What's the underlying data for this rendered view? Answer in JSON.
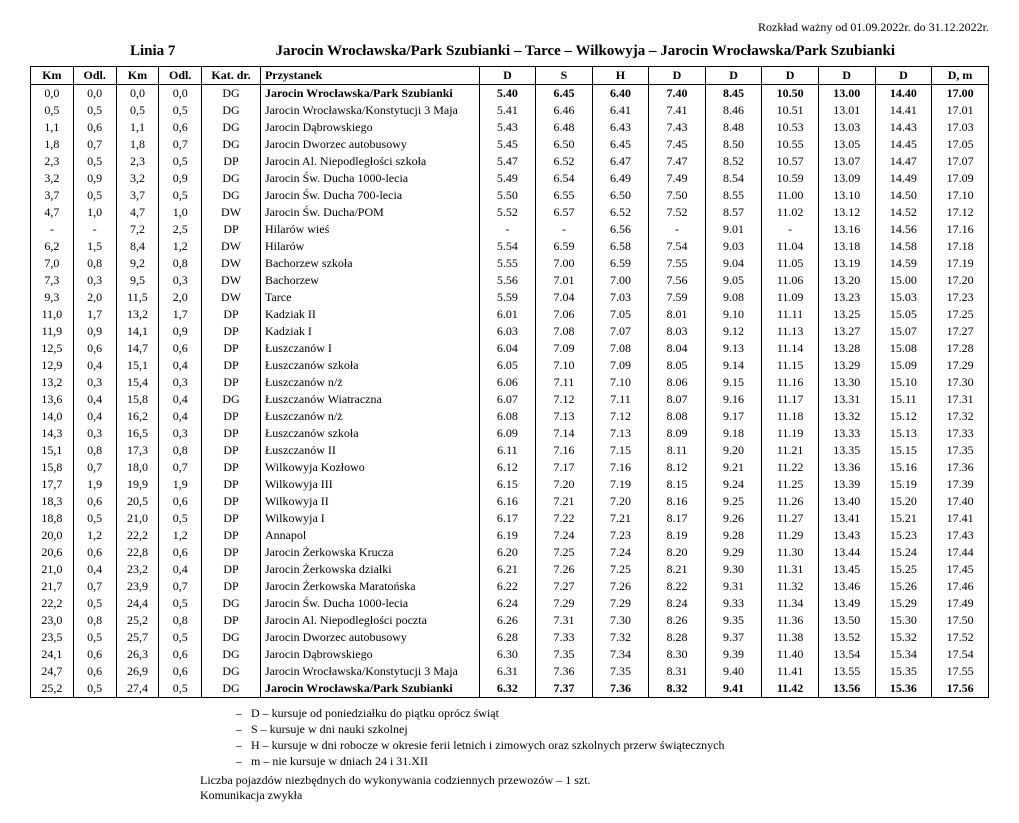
{
  "validity": "Rozkład ważny od 01.09.2022r. do 31.12.2022r.",
  "lineLabel": "Linia  7",
  "routeTitle": "Jarocin Wrocławska/Park Szubianki – Tarce – Wilkowyja – Jarocin Wrocławska/Park Szubianki",
  "headers": [
    "Km",
    "Odl.",
    "Km",
    "Odl.",
    "Kat. dr.",
    "Przystanek",
    "D",
    "S",
    "H",
    "D",
    "D",
    "D",
    "D",
    "D",
    "D, m"
  ],
  "rows": [
    {
      "km": "0,0",
      "odl": "0,0",
      "km2": "0,0",
      "odl2": "0,0",
      "kat": "DG",
      "stop": "Jarocin Wrocławska/Park Szubianki",
      "bold": true,
      "t": [
        "5.40",
        "6.45",
        "6.40",
        "7.40",
        "8.45",
        "10.50",
        "13.00",
        "14.40",
        "17.00"
      ]
    },
    {
      "km": "0,5",
      "odl": "0,5",
      "km2": "0,5",
      "odl2": "0,5",
      "kat": "DG",
      "stop": "Jarocin Wrocławska/Konstytucji 3 Maja",
      "t": [
        "5.41",
        "6.46",
        "6.41",
        "7.41",
        "8.46",
        "10.51",
        "13.01",
        "14.41",
        "17.01"
      ]
    },
    {
      "km": "1,1",
      "odl": "0,6",
      "km2": "1,1",
      "odl2": "0,6",
      "kat": "DG",
      "stop": "Jarocin Dąbrowskiego",
      "t": [
        "5.43",
        "6.48",
        "6.43",
        "7.43",
        "8.48",
        "10.53",
        "13.03",
        "14.43",
        "17.03"
      ]
    },
    {
      "km": "1,8",
      "odl": "0,7",
      "km2": "1,8",
      "odl2": "0,7",
      "kat": "DG",
      "stop": "Jarocin Dworzec autobusowy",
      "t": [
        "5.45",
        "6.50",
        "6.45",
        "7.45",
        "8.50",
        "10.55",
        "13.05",
        "14.45",
        "17.05"
      ]
    },
    {
      "km": "2,3",
      "odl": "0,5",
      "km2": "2,3",
      "odl2": "0,5",
      "kat": "DP",
      "stop": "Jarocin Al. Niepodległości szkoła",
      "t": [
        "5.47",
        "6.52",
        "6.47",
        "7.47",
        "8.52",
        "10.57",
        "13.07",
        "14.47",
        "17.07"
      ]
    },
    {
      "km": "3,2",
      "odl": "0,9",
      "km2": "3,2",
      "odl2": "0,9",
      "kat": "DG",
      "stop": "Jarocin Św. Ducha 1000-lecia",
      "t": [
        "5.49",
        "6.54",
        "6.49",
        "7.49",
        "8.54",
        "10.59",
        "13.09",
        "14.49",
        "17.09"
      ]
    },
    {
      "km": "3,7",
      "odl": "0,5",
      "km2": "3,7",
      "odl2": "0,5",
      "kat": "DG",
      "stop": "Jarocin Św. Ducha 700-lecia",
      "t": [
        "5.50",
        "6.55",
        "6.50",
        "7.50",
        "8.55",
        "11.00",
        "13.10",
        "14.50",
        "17.10"
      ]
    },
    {
      "km": "4,7",
      "odl": "1,0",
      "km2": "4,7",
      "odl2": "1,0",
      "kat": "DW",
      "stop": "Jarocin Św. Ducha/POM",
      "t": [
        "5.52",
        "6.57",
        "6.52",
        "7.52",
        "8.57",
        "11.02",
        "13.12",
        "14.52",
        "17.12"
      ]
    },
    {
      "km": "-",
      "odl": "-",
      "km2": "7,2",
      "odl2": "2,5",
      "kat": "DP",
      "stop": "Hilarów wieś",
      "t": [
        "-",
        "-",
        "6.56",
        "-",
        "9.01",
        "-",
        "13.16",
        "14.56",
        "17.16"
      ]
    },
    {
      "km": "6,2",
      "odl": "1,5",
      "km2": "8,4",
      "odl2": "1,2",
      "kat": "DW",
      "stop": "Hilarów",
      "t": [
        "5.54",
        "6.59",
        "6.58",
        "7.54",
        "9.03",
        "11.04",
        "13.18",
        "14.58",
        "17.18"
      ]
    },
    {
      "km": "7,0",
      "odl": "0,8",
      "km2": "9,2",
      "odl2": "0,8",
      "kat": "DW",
      "stop": "Bachorzew szkoła",
      "t": [
        "5.55",
        "7.00",
        "6.59",
        "7.55",
        "9.04",
        "11.05",
        "13.19",
        "14.59",
        "17.19"
      ]
    },
    {
      "km": "7,3",
      "odl": "0,3",
      "km2": "9,5",
      "odl2": "0,3",
      "kat": "DW",
      "stop": "Bachorzew",
      "t": [
        "5.56",
        "7.01",
        "7.00",
        "7.56",
        "9.05",
        "11.06",
        "13.20",
        "15.00",
        "17.20"
      ]
    },
    {
      "km": "9,3",
      "odl": "2,0",
      "km2": "11,5",
      "odl2": "2,0",
      "kat": "DW",
      "stop": "Tarce",
      "t": [
        "5.59",
        "7.04",
        "7.03",
        "7.59",
        "9.08",
        "11.09",
        "13.23",
        "15.03",
        "17.23"
      ]
    },
    {
      "km": "11,0",
      "odl": "1,7",
      "km2": "13,2",
      "odl2": "1,7",
      "kat": "DP",
      "stop": "Kadziak II",
      "t": [
        "6.01",
        "7.06",
        "7.05",
        "8.01",
        "9.10",
        "11.11",
        "13.25",
        "15.05",
        "17.25"
      ]
    },
    {
      "km": "11,9",
      "odl": "0,9",
      "km2": "14,1",
      "odl2": "0,9",
      "kat": "DP",
      "stop": "Kadziak I",
      "t": [
        "6.03",
        "7.08",
        "7.07",
        "8.03",
        "9.12",
        "11.13",
        "13.27",
        "15.07",
        "17.27"
      ]
    },
    {
      "km": "12,5",
      "odl": "0,6",
      "km2": "14,7",
      "odl2": "0,6",
      "kat": "DP",
      "stop": "Łuszczanów I",
      "t": [
        "6.04",
        "7.09",
        "7.08",
        "8.04",
        "9.13",
        "11.14",
        "13.28",
        "15.08",
        "17.28"
      ]
    },
    {
      "km": "12,9",
      "odl": "0,4",
      "km2": "15,1",
      "odl2": "0,4",
      "kat": "DP",
      "stop": "Łuszczanów szkoła",
      "t": [
        "6.05",
        "7.10",
        "7.09",
        "8.05",
        "9.14",
        "11.15",
        "13.29",
        "15.09",
        "17.29"
      ]
    },
    {
      "km": "13,2",
      "odl": "0,3",
      "km2": "15,4",
      "odl2": "0,3",
      "kat": "DP",
      "stop": "Łuszczanów n/ż",
      "t": [
        "6.06",
        "7.11",
        "7.10",
        "8.06",
        "9.15",
        "11.16",
        "13.30",
        "15.10",
        "17.30"
      ]
    },
    {
      "km": "13,6",
      "odl": "0,4",
      "km2": "15,8",
      "odl2": "0,4",
      "kat": "DG",
      "stop": "Łuszczanów Wiatraczna",
      "t": [
        "6.07",
        "7.12",
        "7.11",
        "8.07",
        "9.16",
        "11.17",
        "13.31",
        "15.11",
        "17.31"
      ]
    },
    {
      "km": "14,0",
      "odl": "0,4",
      "km2": "16,2",
      "odl2": "0,4",
      "kat": "DP",
      "stop": "Łuszczanów n/ż",
      "t": [
        "6.08",
        "7.13",
        "7.12",
        "8.08",
        "9.17",
        "11.18",
        "13.32",
        "15.12",
        "17.32"
      ]
    },
    {
      "km": "14,3",
      "odl": "0,3",
      "km2": "16,5",
      "odl2": "0,3",
      "kat": "DP",
      "stop": "Łuszczanów szkoła",
      "t": [
        "6.09",
        "7.14",
        "7.13",
        "8.09",
        "9.18",
        "11.19",
        "13.33",
        "15.13",
        "17.33"
      ]
    },
    {
      "km": "15,1",
      "odl": "0,8",
      "km2": "17,3",
      "odl2": "0,8",
      "kat": "DP",
      "stop": "Łuszczanów II",
      "t": [
        "6.11",
        "7.16",
        "7.15",
        "8.11",
        "9.20",
        "11.21",
        "13.35",
        "15.15",
        "17.35"
      ]
    },
    {
      "km": "15,8",
      "odl": "0,7",
      "km2": "18,0",
      "odl2": "0,7",
      "kat": "DP",
      "stop": "Wilkowyja Kozłowo",
      "t": [
        "6.12",
        "7.17",
        "7.16",
        "8.12",
        "9.21",
        "11.22",
        "13.36",
        "15.16",
        "17.36"
      ]
    },
    {
      "km": "17,7",
      "odl": "1,9",
      "km2": "19,9",
      "odl2": "1,9",
      "kat": "DP",
      "stop": "Wilkowyja III",
      "t": [
        "6.15",
        "7.20",
        "7.19",
        "8.15",
        "9.24",
        "11.25",
        "13.39",
        "15.19",
        "17.39"
      ]
    },
    {
      "km": "18,3",
      "odl": "0,6",
      "km2": "20,5",
      "odl2": "0,6",
      "kat": "DP",
      "stop": "Wilkowyja II",
      "t": [
        "6.16",
        "7.21",
        "7.20",
        "8.16",
        "9.25",
        "11.26",
        "13.40",
        "15.20",
        "17.40"
      ]
    },
    {
      "km": "18,8",
      "odl": "0,5",
      "km2": "21,0",
      "odl2": "0,5",
      "kat": "DP",
      "stop": "Wilkowyja I",
      "t": [
        "6.17",
        "7.22",
        "7.21",
        "8.17",
        "9.26",
        "11.27",
        "13.41",
        "15.21",
        "17.41"
      ]
    },
    {
      "km": "20,0",
      "odl": "1,2",
      "km2": "22,2",
      "odl2": "1,2",
      "kat": "DP",
      "stop": "Annapol",
      "t": [
        "6.19",
        "7.24",
        "7.23",
        "8.19",
        "9.28",
        "11.29",
        "13.43",
        "15.23",
        "17.43"
      ]
    },
    {
      "km": "20,6",
      "odl": "0,6",
      "km2": "22,8",
      "odl2": "0,6",
      "kat": "DP",
      "stop": "Jarocin Żerkowska Krucza",
      "t": [
        "6.20",
        "7.25",
        "7.24",
        "8.20",
        "9.29",
        "11.30",
        "13.44",
        "15.24",
        "17.44"
      ]
    },
    {
      "km": "21,0",
      "odl": "0,4",
      "km2": "23,2",
      "odl2": "0,4",
      "kat": "DP",
      "stop": "Jarocin Żerkowska działki",
      "t": [
        "6.21",
        "7.26",
        "7.25",
        "8.21",
        "9.30",
        "11.31",
        "13.45",
        "15.25",
        "17.45"
      ]
    },
    {
      "km": "21,7",
      "odl": "0,7",
      "km2": "23,9",
      "odl2": "0,7",
      "kat": "DP",
      "stop": "Jarocin Żerkowska Maratońska",
      "t": [
        "6.22",
        "7.27",
        "7.26",
        "8.22",
        "9.31",
        "11.32",
        "13.46",
        "15.26",
        "17.46"
      ]
    },
    {
      "km": "22,2",
      "odl": "0,5",
      "km2": "24,4",
      "odl2": "0,5",
      "kat": "DG",
      "stop": "Jarocin Św. Ducha 1000-lecia",
      "t": [
        "6.24",
        "7.29",
        "7.29",
        "8.24",
        "9.33",
        "11.34",
        "13.49",
        "15.29",
        "17.49"
      ]
    },
    {
      "km": "23,0",
      "odl": "0,8",
      "km2": "25,2",
      "odl2": "0,8",
      "kat": "DP",
      "stop": "Jarocin Al. Niepodległości poczta",
      "t": [
        "6.26",
        "7.31",
        "7.30",
        "8.26",
        "9.35",
        "11.36",
        "13.50",
        "15.30",
        "17.50"
      ]
    },
    {
      "km": "23,5",
      "odl": "0,5",
      "km2": "25,7",
      "odl2": "0,5",
      "kat": "DG",
      "stop": "Jarocin Dworzec autobusowy",
      "t": [
        "6.28",
        "7.33",
        "7.32",
        "8.28",
        "9.37",
        "11.38",
        "13.52",
        "15.32",
        "17.52"
      ]
    },
    {
      "km": "24,1",
      "odl": "0,6",
      "km2": "26,3",
      "odl2": "0,6",
      "kat": "DG",
      "stop": "Jarocin Dąbrowskiego",
      "t": [
        "6.30",
        "7.35",
        "7.34",
        "8.30",
        "9.39",
        "11.40",
        "13.54",
        "15.34",
        "17.54"
      ]
    },
    {
      "km": "24,7",
      "odl": "0,6",
      "km2": "26,9",
      "odl2": "0,6",
      "kat": "DG",
      "stop": "Jarocin Wrocławska/Konstytucji 3 Maja",
      "t": [
        "6.31",
        "7.36",
        "7.35",
        "8.31",
        "9.40",
        "11.41",
        "13.55",
        "15.35",
        "17.55"
      ]
    },
    {
      "km": "25,2",
      "odl": "0,5",
      "km2": "27,4",
      "odl2": "0,5",
      "kat": "DG",
      "stop": "Jarocin Wrocławska/Park Szubianki",
      "bold": true,
      "t": [
        "6.32",
        "7.37",
        "7.36",
        "8.32",
        "9.41",
        "11.42",
        "13.56",
        "15.36",
        "17.56"
      ]
    }
  ],
  "legend": [
    "D – kursuje od poniedziałku do piątku oprócz świąt",
    "S – kursuje w dni nauki szkolnej",
    "H – kursuje w dni robocze w okresie ferii letnich i zimowych oraz szkolnych przerw świątecznych",
    "m – nie kursuje w dniach 24 i 31.XII"
  ],
  "footer1": "Liczba pojazdów niezbędnych do wykonywania codziennych przewozów – 1 szt.",
  "footer2": "Komunikacja zwykła"
}
